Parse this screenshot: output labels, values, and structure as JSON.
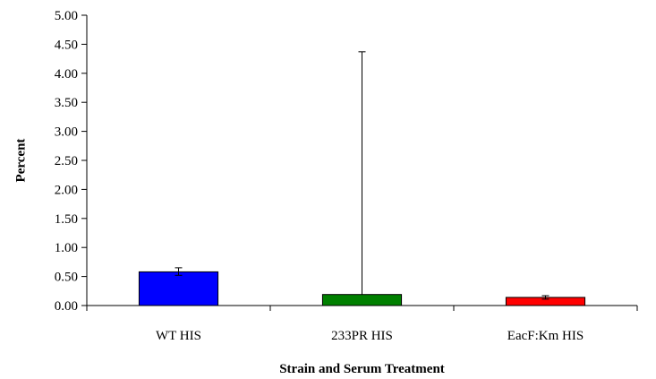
{
  "chart_data": {
    "type": "bar",
    "title": "",
    "xlabel": "Strain and Serum Treatment",
    "ylabel": "Percent",
    "categories": [
      "WT HIS",
      "233PR HIS",
      "EacF:Km HIS"
    ],
    "values": [
      0.58,
      0.19,
      0.14
    ],
    "error_low": [
      0.52,
      0.19,
      0.11
    ],
    "error_high": [
      0.65,
      4.37,
      0.17
    ],
    "bar_colors": [
      "#0000ff",
      "#008000",
      "#ff0000"
    ],
    "ylim": [
      0,
      5
    ],
    "yticks": [
      "0.00",
      "0.50",
      "1.00",
      "1.50",
      "2.00",
      "2.50",
      "3.00",
      "3.50",
      "4.00",
      "4.50",
      "5.00"
    ],
    "grid": false,
    "legend": "none"
  }
}
